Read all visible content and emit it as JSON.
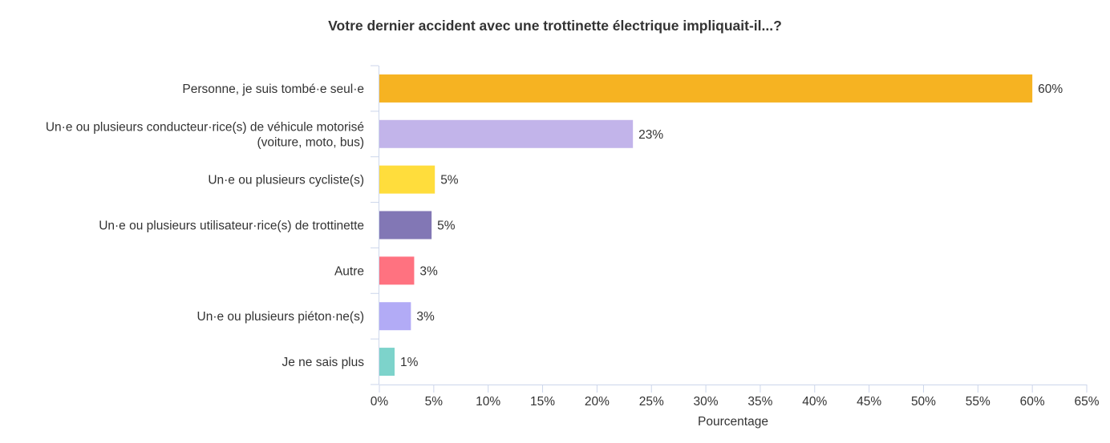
{
  "chart_data": {
    "type": "bar",
    "orientation": "horizontal",
    "title": "Votre dernier accident avec une trottinette électrique impliquait-il...?",
    "xlabel": "Pourcentage",
    "ylabel": "",
    "xlim": [
      0,
      65
    ],
    "x_ticks": [
      0,
      5,
      10,
      15,
      20,
      25,
      30,
      35,
      40,
      45,
      50,
      55,
      60,
      65
    ],
    "x_tick_labels": [
      "0%",
      "5%",
      "10%",
      "15%",
      "20%",
      "25%",
      "30%",
      "35%",
      "40%",
      "45%",
      "50%",
      "55%",
      "60%",
      "65%"
    ],
    "grid": false,
    "categories": [
      [
        "Personne, je suis tombé·e seul·e"
      ],
      [
        "Un·e ou plusieurs conducteur·rice(s) de véhicule motorisé",
        "(voiture, moto, bus)"
      ],
      [
        "Un·e ou plusieurs cycliste(s)"
      ],
      [
        "Un·e ou plusieurs utilisateur·rice(s) de trottinette"
      ],
      [
        "Autre"
      ],
      [
        "Un·e ou plusieurs piéton·ne(s)"
      ],
      [
        "Je ne sais plus"
      ]
    ],
    "values": [
      60,
      23.3,
      5.1,
      4.8,
      3.2,
      2.9,
      1.4
    ],
    "value_labels": [
      "60%",
      "23%",
      "5%",
      "5%",
      "3%",
      "3%",
      "1%"
    ],
    "colors": [
      "#f6b322",
      "#c2b4ea",
      "#ffdd3c",
      "#8277b5",
      "#ff7280",
      "#b2abf6",
      "#7dd3cb"
    ],
    "axis_color": "#ccd6eb"
  }
}
